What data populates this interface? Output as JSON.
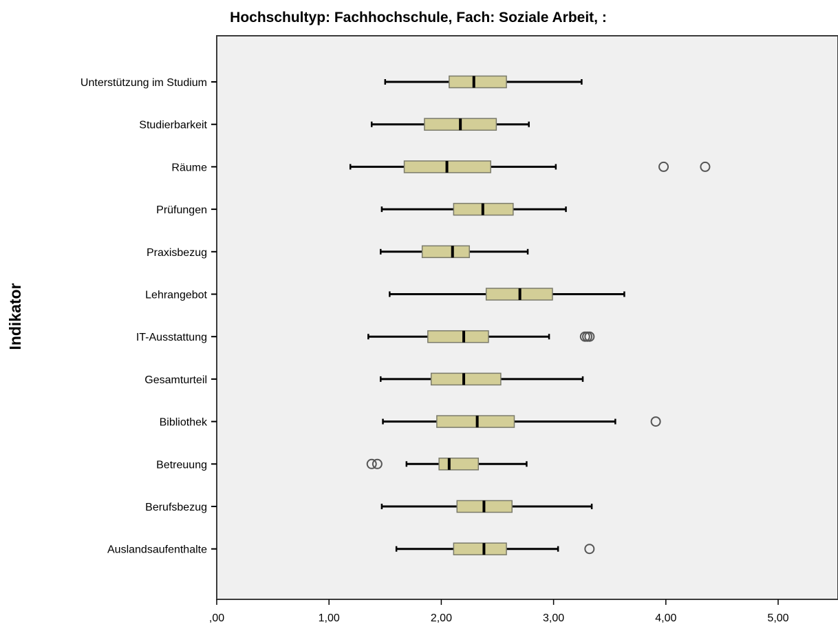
{
  "chart_data": {
    "type": "boxplot",
    "orientation": "horizontal",
    "title": "Hochschultyp: Fachhochschule, Fach: Soziale Arbeit,  :",
    "xlabel": "",
    "ylabel": "Indikator",
    "xlim": [
      0,
      5.55
    ],
    "xticks": [
      0,
      1,
      2,
      3,
      4,
      5
    ],
    "xtick_labels": [
      ",00",
      "1,00",
      "2,00",
      "3,00",
      "4,00",
      "5,00"
    ],
    "grid": false,
    "categories": [
      "Unterstützung im Studium",
      "Studierbarkeit",
      "Räume",
      "Prüfungen",
      "Praxisbezug",
      "Lehrangebot",
      "IT-Ausstattung",
      "Gesamturteil",
      "Bibliothek",
      "Betreuung",
      "Berufsbezug",
      "Auslandsaufenthalte"
    ],
    "boxes": [
      {
        "min": 1.5,
        "q1": 2.07,
        "median": 2.29,
        "q3": 2.58,
        "max": 3.25,
        "outliers": []
      },
      {
        "min": 1.38,
        "q1": 1.85,
        "median": 2.17,
        "q3": 2.49,
        "max": 2.78,
        "outliers": []
      },
      {
        "min": 1.19,
        "q1": 1.67,
        "median": 2.05,
        "q3": 2.44,
        "max": 3.02,
        "outliers": [
          3.98,
          4.35
        ]
      },
      {
        "min": 1.47,
        "q1": 2.11,
        "median": 2.37,
        "q3": 2.64,
        "max": 3.11,
        "outliers": []
      },
      {
        "min": 1.46,
        "q1": 1.83,
        "median": 2.1,
        "q3": 2.25,
        "max": 2.77,
        "outliers": []
      },
      {
        "min": 1.54,
        "q1": 2.4,
        "median": 2.7,
        "q3": 2.99,
        "max": 3.63,
        "outliers": []
      },
      {
        "min": 1.35,
        "q1": 1.88,
        "median": 2.2,
        "q3": 2.42,
        "max": 2.96,
        "outliers": [
          3.28,
          3.3,
          3.32
        ]
      },
      {
        "min": 1.46,
        "q1": 1.91,
        "median": 2.2,
        "q3": 2.53,
        "max": 3.26,
        "outliers": []
      },
      {
        "min": 1.48,
        "q1": 1.96,
        "median": 2.32,
        "q3": 2.65,
        "max": 3.55,
        "outliers": [
          3.91
        ]
      },
      {
        "min": 1.69,
        "q1": 1.98,
        "median": 2.07,
        "q3": 2.33,
        "max": 2.76,
        "outliers": [
          1.38,
          1.43
        ]
      },
      {
        "min": 1.47,
        "q1": 2.14,
        "median": 2.38,
        "q3": 2.63,
        "max": 3.34,
        "outliers": []
      },
      {
        "min": 1.6,
        "q1": 2.11,
        "median": 2.38,
        "q3": 2.58,
        "max": 3.04,
        "outliers": [
          3.32
        ]
      }
    ],
    "colors": {
      "plot_background": "#f0f0f0",
      "box_fill": "#d3ce97",
      "box_stroke": "#7a7a6a",
      "whisker": "#000000",
      "outlier_stroke": "#555555"
    }
  }
}
